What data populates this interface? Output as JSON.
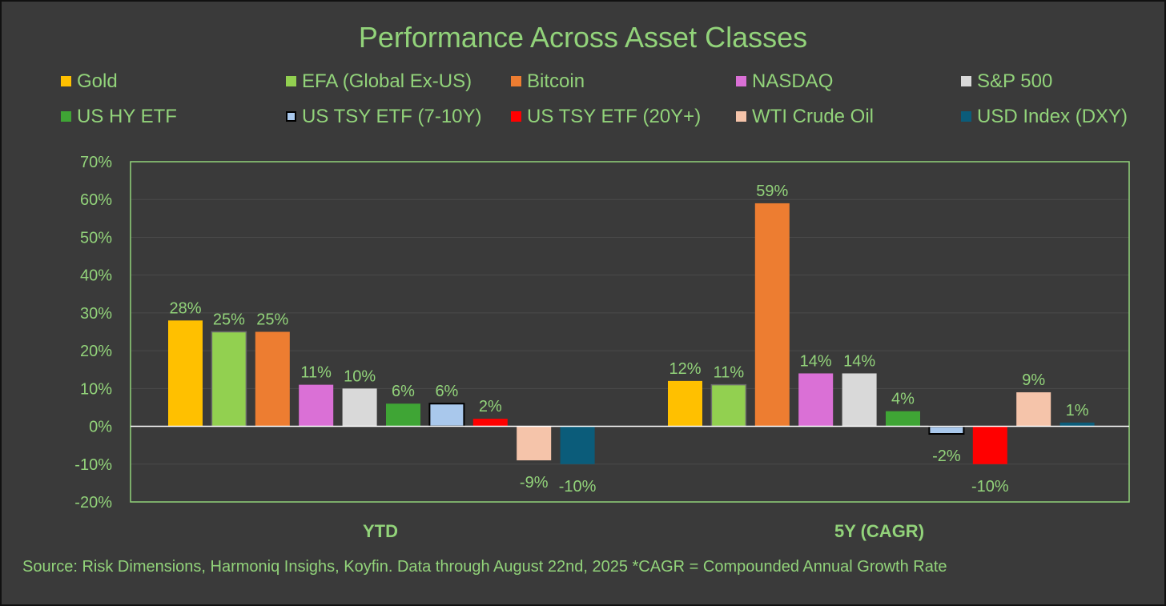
{
  "chart_data": {
    "type": "bar",
    "title": "Performance Across Asset Classes",
    "categories": [
      "YTD",
      "5Y (CAGR)"
    ],
    "ylim": [
      -20,
      70
    ],
    "yticks": [
      70,
      60,
      50,
      40,
      30,
      20,
      10,
      0,
      -10,
      -20
    ],
    "ytick_labels": [
      "70%",
      "60%",
      "50%",
      "40%",
      "30%",
      "20%",
      "10%",
      "0%",
      "-10%",
      "-20%"
    ],
    "grid": true,
    "series": [
      {
        "name": "Gold",
        "color": "#ffc000",
        "values": [
          28,
          12
        ],
        "labels": [
          "28%",
          "12%"
        ]
      },
      {
        "name": "EFA (Global Ex-US)",
        "color": "#92d050",
        "values": [
          25,
          11
        ],
        "labels": [
          "25%",
          "11%"
        ]
      },
      {
        "name": "Bitcoin",
        "color": "#ed7d31",
        "values": [
          25,
          59
        ],
        "labels": [
          "25%",
          "59%"
        ]
      },
      {
        "name": "NASDAQ",
        "color": "#da70d6",
        "values": [
          11,
          14
        ],
        "labels": [
          "11%",
          "14%"
        ]
      },
      {
        "name": "S&P 500",
        "color": "#d9d9d9",
        "values": [
          10,
          14
        ],
        "labels": [
          "10%",
          "14%"
        ]
      },
      {
        "name": "US HY ETF",
        "color": "#3fa535",
        "values": [
          6,
          4
        ],
        "labels": [
          "6%",
          "4%"
        ]
      },
      {
        "name": "US TSY ETF (7-10Y)",
        "color": "#a9c8ec",
        "values": [
          6,
          -2
        ],
        "labels": [
          "6%",
          "-2%"
        ]
      },
      {
        "name": "US TSY ETF (20Y+)",
        "color": "#ff0000",
        "values": [
          2,
          -10
        ],
        "labels": [
          "2%",
          "-10%"
        ]
      },
      {
        "name": "WTI Crude Oil",
        "color": "#f5c4aa",
        "values": [
          -9,
          9
        ],
        "labels": [
          "-9%",
          "9%"
        ]
      },
      {
        "name": "USD Index (DXY)",
        "color": "#0b5c7a",
        "values": [
          -10,
          1
        ],
        "labels": [
          "-10%",
          "1%"
        ]
      }
    ]
  },
  "footer": {
    "source": "Source: Risk Dimensions, Harmoniq Insighs, Koyfin. Data through August 22nd, 2025 *CAGR = Compounded Annual Growth Rate"
  }
}
